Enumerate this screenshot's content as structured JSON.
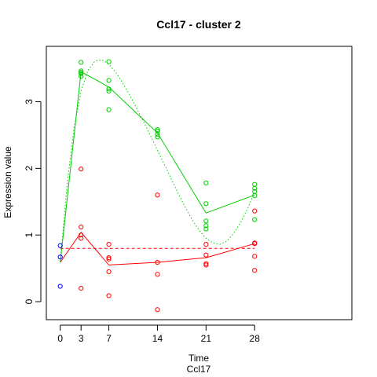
{
  "chart_data": {
    "type": "scatter",
    "title": "Ccl17 - cluster 2",
    "xlabel": "Time",
    "sublabel": "Ccl17",
    "ylabel": "Expression value",
    "xlim": [
      -2,
      42
    ],
    "ylim": [
      -0.27,
      3.83
    ],
    "x_ticks": [
      0,
      3,
      7,
      14,
      21,
      28
    ],
    "y_ticks": [
      0,
      1,
      2,
      3
    ],
    "grid": false,
    "legend": "none",
    "colors": {
      "green": "#00cd00",
      "red": "#ff0000",
      "blue": "#0000ff"
    },
    "series": [
      {
        "color": "green",
        "points": [
          [
            3,
            3.59
          ],
          [
            3,
            3.46
          ],
          [
            3,
            3.44
          ],
          [
            3,
            3.42
          ],
          [
            3,
            3.38
          ],
          [
            7,
            3.6
          ],
          [
            7,
            3.32
          ],
          [
            7,
            3.19
          ],
          [
            7,
            3.16
          ],
          [
            7,
            2.88
          ],
          [
            14,
            2.58
          ],
          [
            14,
            2.56
          ],
          [
            14,
            2.51
          ],
          [
            14,
            2.47
          ],
          [
            21,
            1.78
          ],
          [
            21,
            1.47
          ],
          [
            21,
            1.21
          ],
          [
            21,
            1.14
          ],
          [
            21,
            1.09
          ],
          [
            28,
            1.76
          ],
          [
            28,
            1.7
          ],
          [
            28,
            1.65
          ],
          [
            28,
            1.59
          ],
          [
            28,
            1.23
          ]
        ],
        "mean_line": [
          [
            0,
            0.59
          ],
          [
            3,
            3.45
          ],
          [
            7,
            3.22
          ],
          [
            14,
            2.53
          ],
          [
            21,
            1.33
          ],
          [
            28,
            1.6
          ]
        ],
        "smooth_curve": [
          [
            0,
            0.59
          ],
          [
            1,
            1.77
          ],
          [
            2,
            2.61
          ],
          [
            3,
            3.16
          ],
          [
            4,
            3.47
          ],
          [
            5,
            3.61
          ],
          [
            6,
            3.63
          ],
          [
            7,
            3.56
          ],
          [
            8,
            3.44
          ],
          [
            9,
            3.28
          ],
          [
            10,
            3.1
          ],
          [
            11,
            2.9
          ],
          [
            12,
            2.7
          ],
          [
            13,
            2.49
          ],
          [
            14,
            2.27
          ],
          [
            15,
            2.06
          ],
          [
            16,
            1.84
          ],
          [
            17,
            1.62
          ],
          [
            18,
            1.42
          ],
          [
            19,
            1.23
          ],
          [
            20,
            1.07
          ],
          [
            21,
            0.95
          ],
          [
            22,
            0.88
          ],
          [
            23,
            0.86
          ],
          [
            24,
            0.91
          ],
          [
            25,
            1.03
          ],
          [
            26,
            1.19
          ],
          [
            27,
            1.4
          ],
          [
            28,
            1.65
          ]
        ]
      },
      {
        "color": "red",
        "points": [
          [
            3,
            1.99
          ],
          [
            3,
            1.12
          ],
          [
            3,
            1.0
          ],
          [
            3,
            0.95
          ],
          [
            3,
            0.2
          ],
          [
            7,
            0.86
          ],
          [
            7,
            0.66
          ],
          [
            7,
            0.64
          ],
          [
            7,
            0.45
          ],
          [
            7,
            0.09
          ],
          [
            14,
            1.6
          ],
          [
            14,
            0.59
          ],
          [
            14,
            0.41
          ],
          [
            14,
            -0.12
          ],
          [
            21,
            0.86
          ],
          [
            21,
            0.7
          ],
          [
            21,
            0.57
          ],
          [
            21,
            0.55
          ],
          [
            28,
            1.36
          ],
          [
            28,
            0.88
          ],
          [
            28,
            0.87
          ],
          [
            28,
            0.68
          ],
          [
            28,
            0.47
          ]
        ],
        "mean_line": [
          [
            0,
            0.59
          ],
          [
            3,
            1.04
          ],
          [
            7,
            0.55
          ],
          [
            14,
            0.59
          ],
          [
            21,
            0.66
          ],
          [
            28,
            0.87
          ]
        ],
        "flat_line": [
          [
            0,
            0.8
          ],
          [
            28,
            0.8
          ]
        ]
      },
      {
        "color": "blue",
        "points": [
          [
            0,
            0.84
          ],
          [
            0,
            0.67
          ],
          [
            0,
            0.23
          ]
        ]
      }
    ]
  }
}
